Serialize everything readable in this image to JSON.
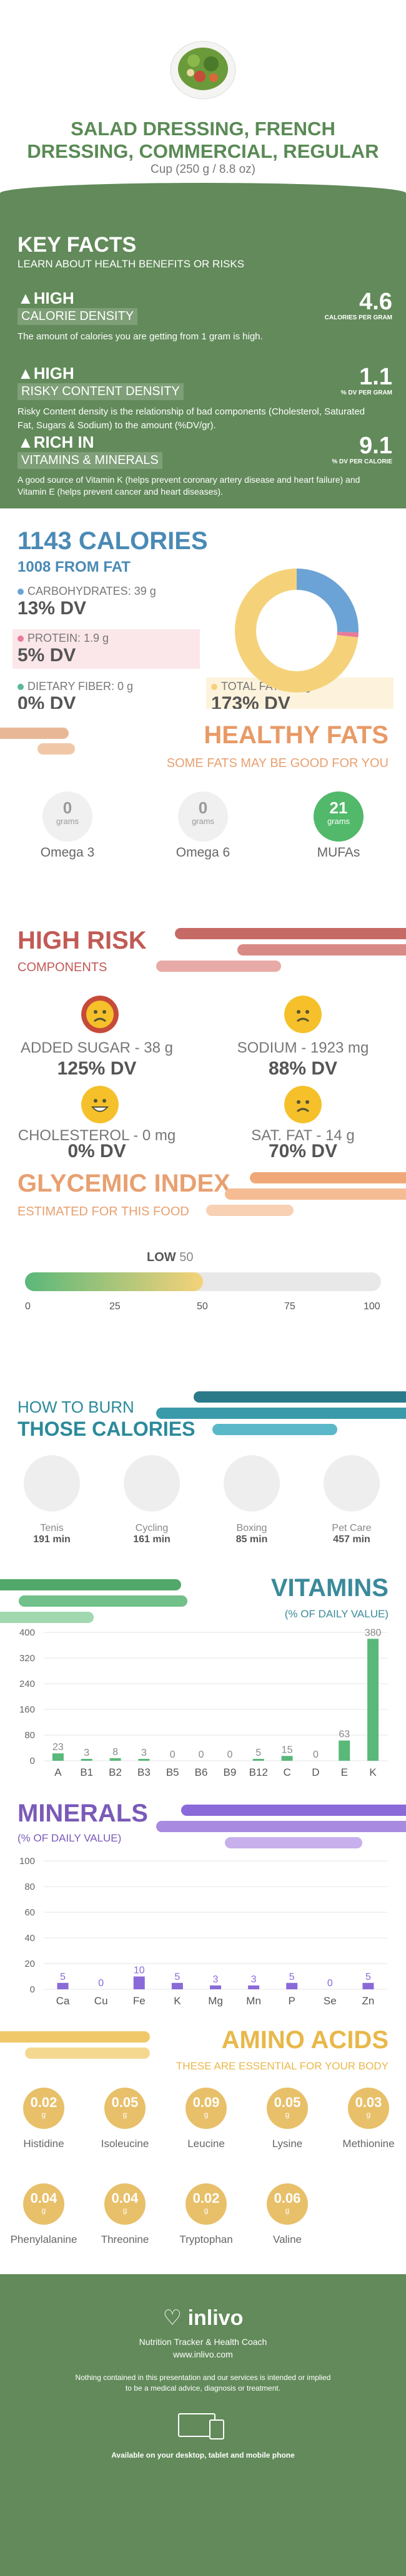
{
  "header": {
    "title_line1": "SALAD DRESSING, FRENCH",
    "title_line2": "DRESSING, COMMERCIAL, REGULAR",
    "serving": "Cup (250 g / 8.8 oz)"
  },
  "key_facts": {
    "title": "KEY FACTS",
    "subtitle": "LEARN ABOUT HEALTH BENEFITS OR RISKS",
    "items": [
      {
        "level": "HIGH",
        "category": "CALORIE DENSITY",
        "value": "4.6",
        "unit": "CALORIES PER GRAM",
        "desc": "The amount of calories you are getting from 1 gram is high."
      },
      {
        "level": "HIGH",
        "category": "RISKY CONTENT DENSITY",
        "value": "1.1",
        "unit": "% DV PER GRAM",
        "desc": "Risky Content density is the relationship of bad components (Cholesterol, Saturated Fat, Sugars & Sodium) to the amount (%DV/gr)."
      },
      {
        "level": "RICH  IN",
        "category": "VITAMINS & MINERALS",
        "value": "9.1",
        "unit": "% DV PER CALORIE",
        "desc": "A good source of Vitamin K (helps prevent coronary artery disease and heart failure) and Vitamin E (helps prevent cancer and heart diseases)."
      }
    ]
  },
  "calories": {
    "title": "1143 CALORIES",
    "subtitle": "1008 FROM FAT",
    "nutrients": [
      {
        "label": "CARBOHYDRATES: 39 g",
        "dv": "13% DV",
        "color": "#6ba3d6"
      },
      {
        "label": "PROTEIN: 1.9 g",
        "dv": "5% DV",
        "color": "#e87a9a"
      },
      {
        "label": "DIETARY FIBER: 0 g",
        "dv": "0% DV",
        "color": "#5ab89a"
      },
      {
        "label": "TOTAL FAT: 112 g",
        "dv": "173% DV",
        "color": "#f5d27a"
      }
    ]
  },
  "healthy_fats": {
    "title": "HEALTHY FATS",
    "subtitle": "SOME FATS MAY BE GOOD FOR YOU",
    "items": [
      {
        "value": "0",
        "unit": "grams",
        "label": "Omega 3"
      },
      {
        "value": "0",
        "unit": "grams",
        "label": "Omega 6"
      },
      {
        "value": "21",
        "unit": "grams",
        "label": "MUFAs"
      }
    ]
  },
  "high_risk": {
    "title": "HIGH RISK",
    "subtitle": "COMPONENTS",
    "items": [
      {
        "label": "ADDED SUGAR - 38 g",
        "dv": "125% DV"
      },
      {
        "label": "SODIUM - 1923 mg",
        "dv": "88% DV"
      },
      {
        "label": "CHOLESTEROL - 0 mg",
        "dv": "0% DV"
      },
      {
        "label": "SAT. FAT - 14 g",
        "dv": "70% DV"
      }
    ]
  },
  "glycemic": {
    "title": "GLYCEMIC INDEX",
    "subtitle": "ESTIMATED FOR THIS FOOD",
    "level": "LOW",
    "value": 50,
    "ticks": [
      "0",
      "25",
      "50",
      "75",
      "100"
    ]
  },
  "burn": {
    "title1": "HOW TO BURN",
    "title2": "THOSE CALORIES",
    "activities": [
      {
        "name": "Tenis",
        "minutes": "191 min"
      },
      {
        "name": "Cycling",
        "minutes": "161 min"
      },
      {
        "name": "Boxing",
        "minutes": "85 min"
      },
      {
        "name": "Pet Care",
        "minutes": "457 min"
      }
    ]
  },
  "vitamins": {
    "title": "VITAMINS",
    "subtitle": "(% OF DAILY VALUE)",
    "y_ticks": [
      "400",
      "320",
      "240",
      "160",
      "80",
      "0"
    ]
  },
  "minerals": {
    "title": "MINERALS",
    "subtitle": "(% OF DAILY VALUE)",
    "y_ticks": [
      "100",
      "80",
      "60",
      "40",
      "20",
      "0"
    ]
  },
  "amino": {
    "title": "AMINO ACIDS",
    "subtitle": "THESE ARE ESSENTIAL FOR YOUR BODY",
    "unit": "g",
    "items": [
      {
        "value": "0.02",
        "name": "Histidine"
      },
      {
        "value": "0.05",
        "name": "Isoleucine"
      },
      {
        "value": "0.09",
        "name": "Leucine"
      },
      {
        "value": "0.05",
        "name": "Lysine"
      },
      {
        "value": "0.03",
        "name": "Methionine"
      },
      {
        "value": "0.04",
        "name": "Phenylalanine"
      },
      {
        "value": "0.04",
        "name": "Threonine"
      },
      {
        "value": "0.02",
        "name": "Tryptophan"
      },
      {
        "value": "0.06",
        "name": "Valine"
      }
    ]
  },
  "footer": {
    "brand": "inlivo",
    "tagline": "Nutrition Tracker & Health Coach",
    "url": "www.inlivo.com",
    "disclaimer1": "Nothing contained in this presentation and our services is intended or implied",
    "disclaimer2": "to be a medical advice, diagnosis or treatment.",
    "available": "Available on your desktop, tablet and mobile phone"
  },
  "chart_data": [
    {
      "type": "pie",
      "categories": [
        "Carbohydrates",
        "Protein",
        "Dietary Fiber",
        "Total Fat"
      ],
      "values": [
        39,
        1.9,
        0,
        112
      ]
    },
    {
      "type": "bar",
      "title": "VITAMINS",
      "ylabel": "(% OF DAILY VALUE)",
      "categories": [
        "A",
        "B1",
        "B2",
        "B3",
        "B5",
        "B6",
        "B9",
        "B12",
        "C",
        "D",
        "E",
        "K"
      ],
      "values": [
        23,
        3,
        8,
        3,
        0,
        0,
        0,
        5,
        15,
        0,
        63,
        380
      ],
      "ylim": [
        0,
        400
      ]
    },
    {
      "type": "bar",
      "title": "MINERALS",
      "ylabel": "(% OF DAILY VALUE)",
      "categories": [
        "Ca",
        "Cu",
        "Fe",
        "K",
        "Mg",
        "Mn",
        "P",
        "Se",
        "Zn"
      ],
      "values": [
        5,
        0,
        10,
        5,
        3,
        3,
        5,
        0,
        5
      ],
      "ylim": [
        0,
        100
      ]
    }
  ]
}
